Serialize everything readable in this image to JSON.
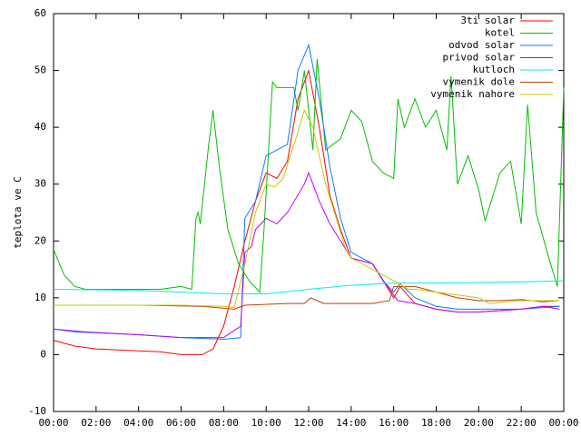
{
  "chart_data": {
    "type": "line",
    "y_label": "teplota ve C",
    "xlim": [
      0,
      24
    ],
    "ylim": [
      -10,
      60
    ],
    "xticks": [
      {
        "value": 0,
        "label": "00:00"
      },
      {
        "value": 2,
        "label": "02:00"
      },
      {
        "value": 4,
        "label": "04:00"
      },
      {
        "value": 6,
        "label": "06:00"
      },
      {
        "value": 8,
        "label": "08:00"
      },
      {
        "value": 10,
        "label": "10:00"
      },
      {
        "value": 12,
        "label": "12:00"
      },
      {
        "value": 14,
        "label": "14:00"
      },
      {
        "value": 16,
        "label": "16:00"
      },
      {
        "value": 18,
        "label": "18:00"
      },
      {
        "value": 20,
        "label": "20:00"
      },
      {
        "value": 22,
        "label": "22:00"
      },
      {
        "value": 24,
        "label": "00:00"
      }
    ],
    "yticks": [
      -10,
      0,
      10,
      20,
      30,
      40,
      50,
      60
    ],
    "legend": "top-right",
    "series": [
      {
        "name": "3ti solar",
        "color": "#ff0000",
        "x": [
          0,
          1,
          2,
          5,
          6,
          7,
          7.5,
          8,
          8.5,
          9,
          9.5,
          10,
          10.5,
          11,
          11.5,
          12,
          12.5,
          13,
          13.5,
          14,
          15,
          15.5,
          16,
          16.3,
          17,
          18,
          19,
          20,
          22,
          23,
          23.8
        ],
        "values": [
          2.5,
          1.5,
          1,
          0.5,
          0,
          0,
          1,
          5,
          12,
          20,
          27,
          32,
          31,
          34,
          45,
          50,
          40,
          28,
          22,
          17,
          16,
          13,
          10,
          12,
          9,
          8,
          7.5,
          7.5,
          8,
          8.5,
          8.5
        ]
      },
      {
        "name": "kotel",
        "color": "#00c000",
        "x": [
          0,
          0.5,
          1,
          1.5,
          3,
          5,
          6,
          6.5,
          6.7,
          6.8,
          6.9,
          7.3,
          7.5,
          7.8,
          8.2,
          8.7,
          9.2,
          9.7,
          9.9,
          10.3,
          10.5,
          11.3,
          11.5,
          11.8,
          12.2,
          12.4,
          12.8,
          13.5,
          14,
          14.5,
          15,
          15.5,
          16,
          16.2,
          16.5,
          17,
          17.5,
          18,
          18.5,
          18.7,
          19,
          19.5,
          20,
          20.3,
          21,
          21.5,
          22,
          22.3,
          22.7,
          23.3,
          23.7,
          24
        ],
        "values": [
          18.5,
          14,
          12,
          11.5,
          11.5,
          11.5,
          12,
          11.5,
          24,
          25,
          23,
          37,
          43,
          33,
          22,
          16,
          13,
          11,
          22,
          48,
          47,
          47,
          43,
          50,
          36,
          52,
          36,
          38,
          43,
          41,
          34,
          32,
          31,
          45,
          40,
          45,
          40,
          43,
          36,
          49,
          30,
          35,
          29,
          23.5,
          32,
          34,
          23,
          44,
          25,
          17,
          12,
          47
        ]
      },
      {
        "name": "odvod solar",
        "color": "#0080ff",
        "x": [
          0,
          1,
          4,
          6,
          8,
          8.8,
          9,
          9.5,
          10,
          10.5,
          11,
          11.5,
          12,
          12.5,
          13,
          13.5,
          14,
          15,
          15.5,
          16,
          16.3,
          17,
          18,
          19,
          20,
          22,
          23.8
        ],
        "values": [
          4.5,
          4,
          3.5,
          3,
          2.7,
          3,
          24,
          27,
          35,
          36,
          37,
          50,
          54.5,
          45,
          33,
          24,
          18,
          16,
          13,
          11,
          12.5,
          10,
          8.5,
          8,
          8,
          8,
          8.5
        ]
      },
      {
        "name": "privod solar",
        "color": "#c000ff",
        "x": [
          0,
          1.5,
          4,
          6,
          8,
          8.8,
          9,
          9.3,
          9.5,
          10,
          10.5,
          11,
          11.8,
          12,
          12.5,
          13,
          13.5,
          14,
          15,
          15.7,
          16.2,
          17,
          18,
          19,
          20,
          22,
          23,
          23.8
        ],
        "values": [
          4.5,
          4,
          3.5,
          3,
          3,
          5,
          18,
          19,
          22,
          24,
          23,
          25,
          30,
          32,
          27,
          23,
          20,
          17,
          16,
          12,
          9.5,
          9,
          8,
          7.5,
          7.5,
          8,
          8.5,
          8
        ]
      },
      {
        "name": "kutloch",
        "color": "#00eeee",
        "x": [
          0,
          4,
          6,
          8,
          10,
          12,
          14,
          16,
          18,
          20,
          22,
          24
        ],
        "values": [
          11.5,
          11.3,
          11,
          10.7,
          10.7,
          11.5,
          12.2,
          12.6,
          12.6,
          12.7,
          12.8,
          13
        ]
      },
      {
        "name": "vymenik dole",
        "color": "#c04000",
        "x": [
          0,
          4,
          7,
          8.5,
          9,
          11,
          11.8,
          12.1,
          12.7,
          15,
          15.8,
          16,
          17,
          18,
          19,
          20,
          21,
          22,
          23,
          23.8
        ],
        "values": [
          8.7,
          8.7,
          8.5,
          8,
          8.7,
          9,
          9,
          10,
          9,
          9,
          9.5,
          12,
          12,
          11,
          10,
          9.5,
          9.5,
          9.7,
          9.3,
          9.5
        ]
      },
      {
        "name": "vymenik nahore",
        "color": "#c8c800",
        "x": [
          0,
          6,
          8,
          8.5,
          9,
          9.5,
          10,
          10.4,
          10.8,
          11.4,
          11.8,
          12.2,
          12.8,
          13.3,
          13.7,
          14,
          15,
          15.5,
          16,
          16.7,
          17,
          18,
          19,
          20,
          20.5,
          22,
          23,
          23.8
        ],
        "values": [
          8.7,
          8.7,
          8.5,
          8.3,
          16,
          25,
          30,
          29.5,
          31,
          38,
          43,
          40,
          30,
          24,
          19,
          17,
          15,
          14,
          13,
          11.5,
          11.5,
          11,
          10.5,
          10,
          9,
          9.5,
          9.5,
          9.5
        ]
      }
    ]
  }
}
